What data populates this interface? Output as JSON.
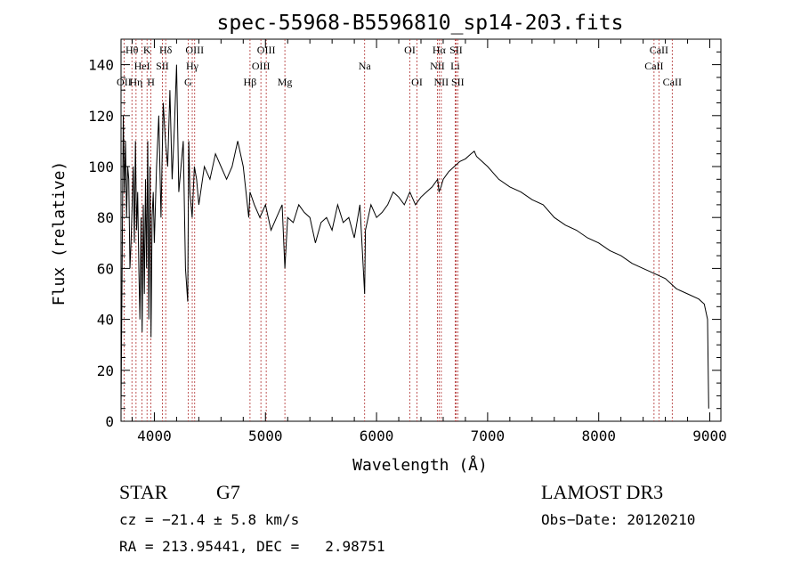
{
  "chart_data": {
    "type": "line",
    "title": "spec-55968-B5596810_sp14-203.fits",
    "xlabel": "Wavelength (Å)",
    "ylabel": "Flux (relative)",
    "xlim": [
      3700,
      9100
    ],
    "ylim": [
      0,
      150
    ],
    "xticks": [
      4000,
      5000,
      6000,
      7000,
      8000,
      9000
    ],
    "yticks": [
      0,
      20,
      40,
      60,
      80,
      100,
      120,
      140
    ],
    "series": [
      {
        "name": "spectrum",
        "x": [
          3700,
          3710,
          3720,
          3730,
          3740,
          3750,
          3760,
          3770,
          3780,
          3790,
          3800,
          3810,
          3820,
          3830,
          3840,
          3850,
          3860,
          3870,
          3880,
          3890,
          3900,
          3910,
          3920,
          3930,
          3940,
          3950,
          3960,
          3970,
          3980,
          3990,
          4000,
          4020,
          4040,
          4060,
          4080,
          4100,
          4120,
          4140,
          4160,
          4180,
          4200,
          4220,
          4240,
          4260,
          4280,
          4300,
          4310,
          4320,
          4340,
          4360,
          4380,
          4400,
          4450,
          4500,
          4550,
          4600,
          4650,
          4700,
          4750,
          4800,
          4850,
          4861,
          4900,
          4950,
          5000,
          5050,
          5100,
          5150,
          5175,
          5200,
          5250,
          5300,
          5350,
          5400,
          5450,
          5500,
          5550,
          5600,
          5650,
          5700,
          5750,
          5800,
          5850,
          5893,
          5900,
          5950,
          6000,
          6050,
          6100,
          6150,
          6200,
          6250,
          6300,
          6350,
          6400,
          6450,
          6500,
          6550,
          6563,
          6580,
          6600,
          6650,
          6700,
          6750,
          6800,
          6850,
          6880,
          6900,
          6950,
          7000,
          7100,
          7200,
          7300,
          7400,
          7500,
          7600,
          7700,
          7800,
          7900,
          8000,
          8100,
          8200,
          8300,
          8400,
          8500,
          8600,
          8700,
          8800,
          8900,
          8950,
          8980,
          8990
        ],
        "values": [
          5,
          60,
          120,
          90,
          110,
          80,
          100,
          95,
          60,
          70,
          85,
          100,
          70,
          110,
          75,
          90,
          60,
          40,
          80,
          35,
          85,
          50,
          95,
          60,
          110,
          40,
          100,
          33,
          80,
          90,
          70,
          100,
          120,
          80,
          125,
          110,
          100,
          130,
          95,
          115,
          140,
          90,
          100,
          110,
          60,
          47,
          110,
          90,
          80,
          100,
          95,
          85,
          100,
          95,
          105,
          100,
          95,
          100,
          110,
          100,
          80,
          90,
          85,
          80,
          85,
          75,
          80,
          85,
          60,
          80,
          78,
          85,
          82,
          80,
          70,
          78,
          80,
          75,
          85,
          78,
          80,
          72,
          85,
          50,
          75,
          85,
          80,
          82,
          85,
          90,
          88,
          85,
          90,
          85,
          88,
          90,
          92,
          95,
          90,
          92,
          95,
          98,
          100,
          102,
          103,
          105,
          106,
          104,
          102,
          100,
          95,
          92,
          90,
          87,
          85,
          80,
          77,
          75,
          72,
          70,
          67,
          65,
          62,
          60,
          58,
          56,
          52,
          50,
          48,
          46,
          40,
          5
        ]
      }
    ],
    "lines": [
      {
        "name": "OII",
        "x": 3727,
        "row": 3
      },
      {
        "name": "Hθ",
        "x": 3798,
        "row": 1
      },
      {
        "name": "Hη",
        "x": 3835,
        "row": 3
      },
      {
        "name": "HeI",
        "x": 3889,
        "row": 2
      },
      {
        "name": "K",
        "x": 3934,
        "row": 1
      },
      {
        "name": "SII",
        "x": 4072,
        "row": 2
      },
      {
        "name": "H",
        "x": 3969,
        "row": 3
      },
      {
        "name": "Hδ",
        "x": 4102,
        "row": 1
      },
      {
        "name": "G",
        "x": 4304,
        "row": 3
      },
      {
        "name": "Hγ",
        "x": 4341,
        "row": 2
      },
      {
        "name": "OIII",
        "x": 4363,
        "row": 1
      },
      {
        "name": "Hβ",
        "x": 4861,
        "row": 3
      },
      {
        "name": "OIII",
        "x": 4959,
        "row": 2
      },
      {
        "name": "OIII",
        "x": 5007,
        "row": 1
      },
      {
        "name": "Mg",
        "x": 5175,
        "row": 3
      },
      {
        "name": "Na",
        "x": 5893,
        "row": 2
      },
      {
        "name": "OI",
        "x": 6300,
        "row": 1
      },
      {
        "name": "OI",
        "x": 6364,
        "row": 3
      },
      {
        "name": "NII",
        "x": 6548,
        "row": 2
      },
      {
        "name": "Hα",
        "x": 6563,
        "row": 1
      },
      {
        "name": "NII",
        "x": 6583,
        "row": 3
      },
      {
        "name": "Li",
        "x": 6708,
        "row": 2
      },
      {
        "name": "SII",
        "x": 6716,
        "row": 1
      },
      {
        "name": "SII",
        "x": 6731,
        "row": 3
      },
      {
        "name": "CaII",
        "x": 8498,
        "row": 2
      },
      {
        "name": "CaII",
        "x": 8542,
        "row": 1
      },
      {
        "name": "CaII",
        "x": 8662,
        "row": 3
      }
    ]
  },
  "info": {
    "object_class": "STAR",
    "subclass": "G7",
    "survey": "LAMOST DR3",
    "cz": "cz = −21.4 ± 5.8 km/s",
    "obs_date": "Obs−Date: 20120210",
    "coords": "RA = 213.95441, DEC =   2.98751"
  }
}
